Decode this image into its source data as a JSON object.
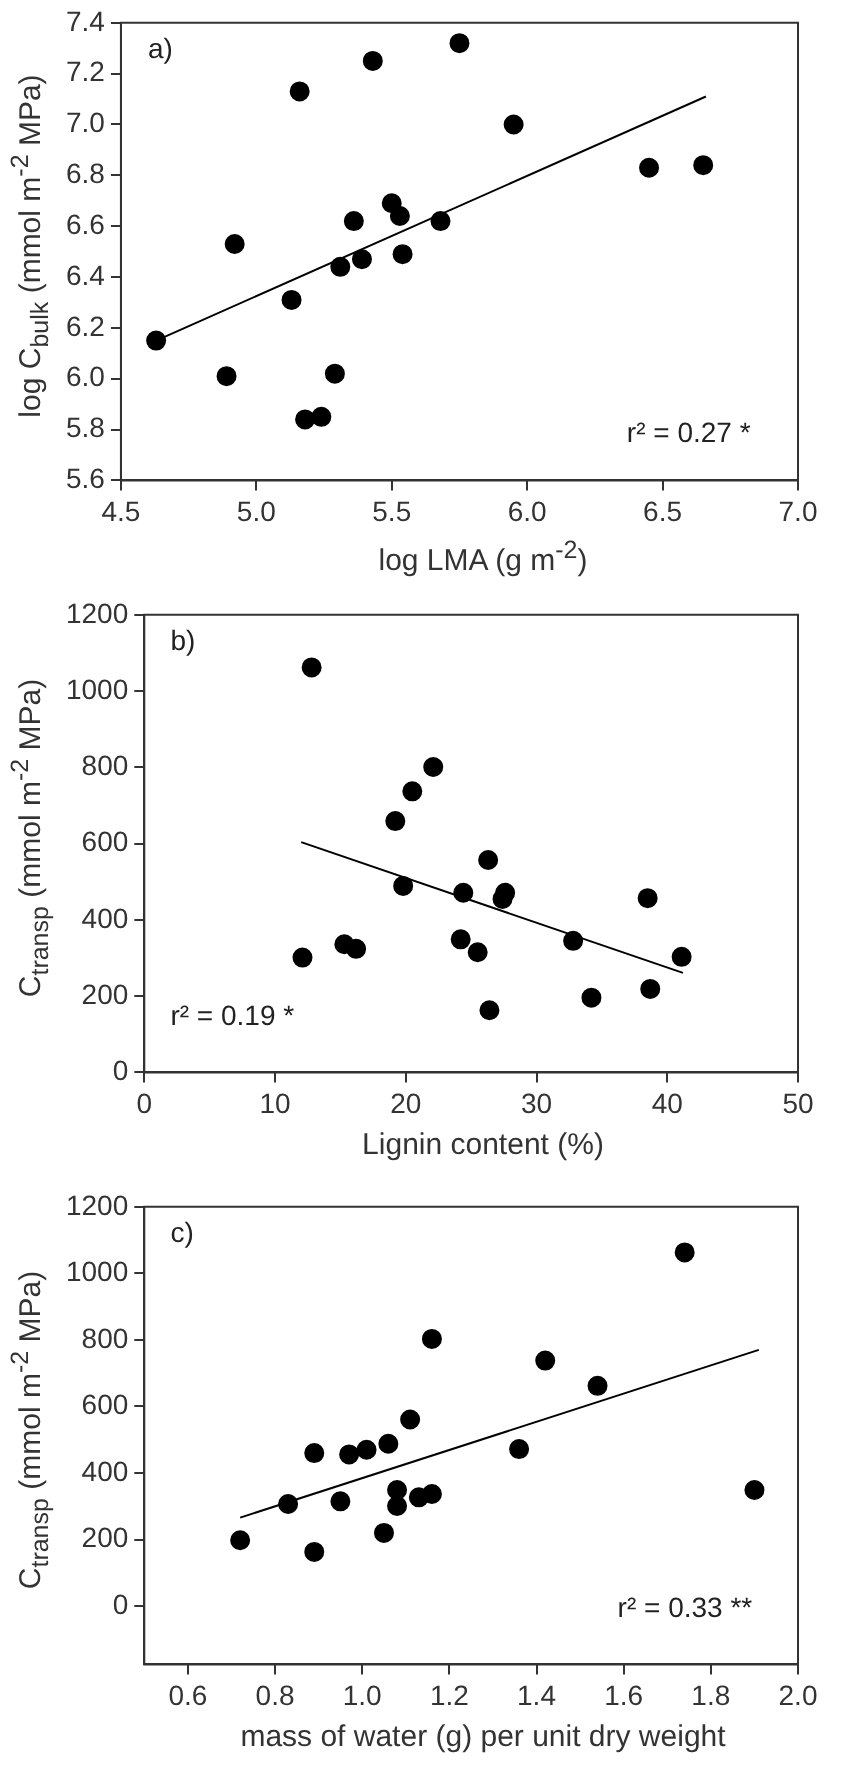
{
  "chart_data": [
    {
      "type": "scatter",
      "xlabel": "log LMA (g m$^{-2}$)",
      "ylabel": "log C$_{bulk}$ (mmol m$^{-2}$ MPa)",
      "annotations": [
        "a)",
        "r² = 0.27 *"
      ],
      "xlim": [
        4.5,
        7.0
      ],
      "xticks": [
        4.5,
        {
          "value": 5,
          "label": "5.0"
        },
        5.5,
        {
          "value": 6,
          "label": "6.0"
        },
        6.5,
        {
          "value": 7,
          "label": "7.0"
        }
      ],
      "ylim": [
        5.6,
        7.4
      ],
      "yticks": [
        5.6,
        5.8,
        {
          "value": 6,
          "label": "6.0"
        },
        6.2,
        6.4,
        6.6,
        6.8,
        {
          "value": 7,
          "label": "7.0"
        },
        7.2,
        7.4
      ],
      "grid": false,
      "legend": false,
      "series": [
        {
          "color": "#000000",
          "marker": "circle",
          "x": [
            4.63,
            4.89,
            4.92,
            5.13,
            5.16,
            5.18,
            5.24,
            5.29,
            5.31,
            5.36,
            5.39,
            5.43,
            5.5,
            5.53,
            5.54,
            5.68,
            5.75,
            5.95,
            6.45,
            6.65
          ],
          "values": [
            6.15,
            6.01,
            6.53,
            6.31,
            7.13,
            5.84,
            5.85,
            6.02,
            6.44,
            6.62,
            6.47,
            7.25,
            6.69,
            6.64,
            6.49,
            6.62,
            7.32,
            7.0,
            6.83,
            6.84
          ]
        },
        {
          "type": "line",
          "marker": "none",
          "color": "#000000",
          "x": [
            4.63,
            6.66
          ],
          "values": [
            6.15,
            7.11
          ]
        }
      ]
    },
    {
      "type": "scatter",
      "xlabel": "Lignin content (%)",
      "ylabel": "C$_{transp}$ (mmol m$^{-2}$ MPa)",
      "annotations": [
        "b)",
        "r² = 0.19 *"
      ],
      "xlim": [
        0,
        50
      ],
      "xticks": [
        0,
        10,
        20,
        30,
        40,
        50
      ],
      "ylim": [
        0,
        1200
      ],
      "yticks": [
        0,
        200,
        400,
        600,
        800,
        1000,
        1200
      ],
      "grid": false,
      "legend": false,
      "series": [
        {
          "color": "#000000",
          "marker": "circle",
          "x": [
            12.1,
            12.8,
            15.3,
            16.2,
            19.2,
            19.8,
            20.5,
            22.1,
            24.2,
            24.4,
            25.5,
            26.3,
            26.4,
            27.4,
            27.6,
            32.8,
            34.2,
            38.5,
            38.7,
            41.1
          ],
          "values": [
            301,
            1062,
            336,
            324,
            659,
            489,
            737,
            801,
            349,
            471,
            315,
            557,
            163,
            455,
            471,
            345,
            196,
            457,
            219,
            303
          ]
        },
        {
          "type": "line",
          "marker": "none",
          "color": "#000000",
          "x": [
            12.0,
            41.2
          ],
          "values": [
            604,
            261
          ]
        }
      ]
    },
    {
      "type": "scatter",
      "xlabel": "mass of water (g) per unit dry weight",
      "ylabel": "C$_{transp}$ (mmol m$^{-2}$ MPa)",
      "annotations": [
        "c)",
        "r² = 0.33 **"
      ],
      "xlim": [
        0.5,
        2.0
      ],
      "xticks": [
        0.6,
        0.8,
        {
          "value": 1,
          "label": "1.0"
        },
        1.2,
        1.4,
        1.6,
        1.8,
        {
          "value": 2,
          "label": "2.0"
        }
      ],
      "ylim": [
        -175,
        1200
      ],
      "yticks": [
        0,
        200,
        400,
        600,
        800,
        1000,
        1200
      ],
      "grid": false,
      "legend": false,
      "series": [
        {
          "color": "#000000",
          "marker": "circle",
          "x": [
            0.72,
            0.83,
            0.89,
            0.89,
            0.95,
            0.97,
            1.01,
            1.05,
            1.06,
            1.08,
            1.08,
            1.11,
            1.13,
            1.16,
            1.16,
            1.36,
            1.42,
            1.54,
            1.74,
            1.9
          ],
          "values": [
            198,
            307,
            460,
            163,
            315,
            456,
            470,
            220,
            488,
            301,
            349,
            561,
            327,
            337,
            803,
            472,
            738,
            662,
            1063,
            349
          ]
        },
        {
          "type": "line",
          "marker": "none",
          "color": "#000000",
          "x": [
            0.72,
            1.91
          ],
          "values": [
            266,
            770
          ]
        }
      ]
    }
  ]
}
